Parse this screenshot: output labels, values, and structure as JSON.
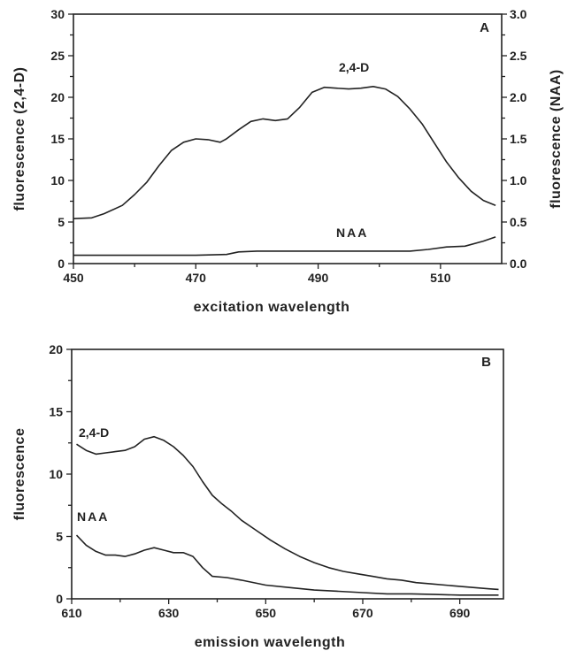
{
  "chart_data": [
    {
      "type": "line",
      "panel_label": "A",
      "xlabel": "excitation wavelength",
      "ylabel": "fluorescence (2,4-D)",
      "ylabel_right": "fluorescence (NAA)",
      "xlim": [
        450,
        520
      ],
      "ylim": [
        0,
        30
      ],
      "ylim_right": [
        0,
        3.0
      ],
      "xticks": [
        450,
        470,
        490,
        510
      ],
      "yticks": [
        0,
        5,
        10,
        15,
        20,
        25,
        30
      ],
      "yticks_right": [
        "0.0",
        "0.5",
        "1.0",
        "1.5",
        "2.0",
        "2.5",
        "3.0"
      ],
      "grid": false,
      "legend": "none",
      "series": [
        {
          "name": "2,4-D",
          "axis": "left",
          "x": [
            450,
            453,
            455,
            458,
            460,
            462,
            464,
            466,
            468,
            470,
            472,
            474,
            475,
            477,
            479,
            481,
            483,
            485,
            487,
            489,
            491,
            493,
            495,
            497,
            499,
            501,
            503,
            505,
            507,
            509,
            511,
            513,
            515,
            517,
            519
          ],
          "y": [
            5.4,
            5.5,
            6.0,
            7.0,
            8.3,
            9.8,
            11.8,
            13.6,
            14.6,
            15.0,
            14.9,
            14.6,
            15.0,
            16.1,
            17.1,
            17.4,
            17.2,
            17.4,
            18.8,
            20.6,
            21.2,
            21.1,
            21.0,
            21.1,
            21.3,
            21.0,
            20.1,
            18.6,
            16.8,
            14.5,
            12.2,
            10.3,
            8.7,
            7.6,
            7.0
          ]
        },
        {
          "name": "NAA",
          "axis": "right",
          "x": [
            450,
            455,
            460,
            465,
            470,
            475,
            477,
            480,
            485,
            490,
            495,
            500,
            505,
            508,
            511,
            514,
            517,
            519
          ],
          "y": [
            0.1,
            0.1,
            0.1,
            0.1,
            0.1,
            0.11,
            0.14,
            0.15,
            0.15,
            0.15,
            0.15,
            0.15,
            0.15,
            0.17,
            0.2,
            0.21,
            0.27,
            0.32
          ]
        }
      ]
    },
    {
      "type": "line",
      "panel_label": "B",
      "xlabel": "emission wavelength",
      "ylabel": "fluorescence",
      "xlim": [
        610,
        699
      ],
      "ylim": [
        0,
        20
      ],
      "xticks": [
        610,
        630,
        650,
        670,
        690
      ],
      "yticks": [
        0,
        5,
        10,
        15,
        20
      ],
      "grid": false,
      "legend": "none",
      "series": [
        {
          "name": "2,4-D",
          "x": [
            611,
            613,
            615,
            617,
            619,
            621,
            623,
            625,
            627,
            629,
            631,
            633,
            635,
            637,
            639,
            641,
            643,
            645,
            648,
            651,
            654,
            657,
            660,
            663,
            666,
            669,
            672,
            675,
            678,
            681,
            684,
            687,
            690,
            693,
            696,
            698
          ],
          "y": [
            12.4,
            11.9,
            11.6,
            11.7,
            11.8,
            11.9,
            12.2,
            12.8,
            13.0,
            12.7,
            12.2,
            11.5,
            10.6,
            9.4,
            8.3,
            7.6,
            7.0,
            6.3,
            5.5,
            4.7,
            4.0,
            3.4,
            2.9,
            2.5,
            2.2,
            2.0,
            1.8,
            1.6,
            1.5,
            1.3,
            1.2,
            1.1,
            1.0,
            0.9,
            0.8,
            0.75
          ]
        },
        {
          "name": "NAA",
          "x": [
            611,
            613,
            615,
            617,
            619,
            621,
            623,
            625,
            627,
            629,
            631,
            633,
            635,
            637,
            639,
            642,
            645,
            650,
            655,
            660,
            665,
            670,
            675,
            680,
            685,
            690,
            695,
            698
          ],
          "y": [
            5.1,
            4.3,
            3.8,
            3.5,
            3.5,
            3.4,
            3.6,
            3.9,
            4.1,
            3.9,
            3.7,
            3.7,
            3.4,
            2.5,
            1.8,
            1.7,
            1.5,
            1.1,
            0.9,
            0.7,
            0.6,
            0.5,
            0.4,
            0.4,
            0.35,
            0.3,
            0.3,
            0.3
          ]
        }
      ]
    }
  ]
}
